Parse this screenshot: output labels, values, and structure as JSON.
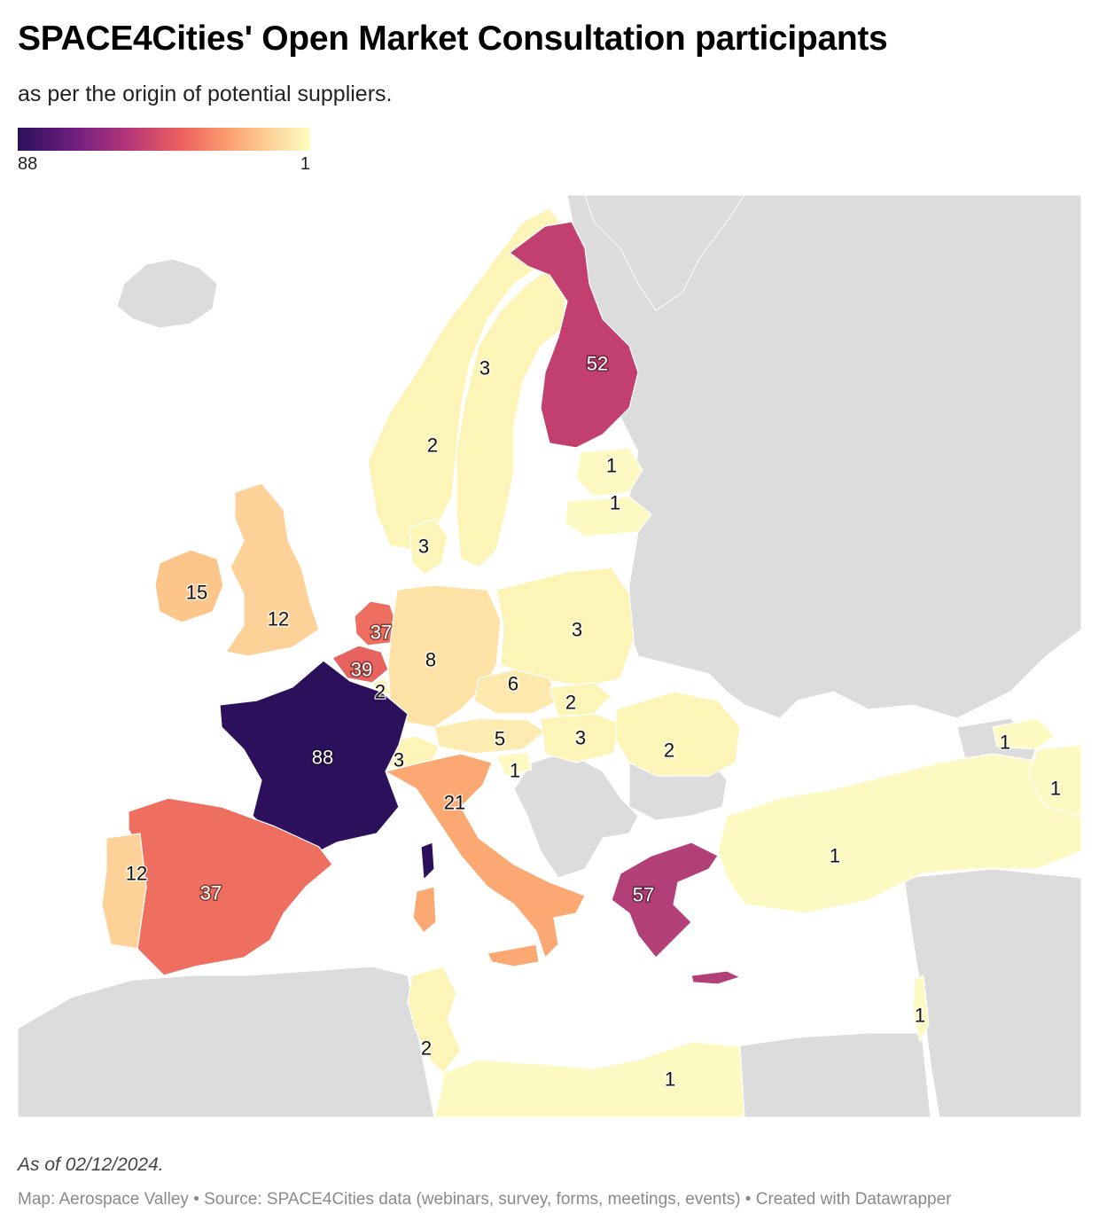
{
  "title": "SPACE4Cities' Open Market Consultation participants",
  "subtitle": "as per the origin of potential suppliers.",
  "legend": {
    "min_label": "88",
    "max_label": "1",
    "scale": "magma (dark = high)"
  },
  "notes": "As of 02/12/2024.",
  "footer": {
    "map_credit": "Map: Aerospace Valley",
    "source": "Source: SPACE4Cities data (webinars, survey, forms, meetings, events)",
    "created_with": "Created with Datawrapper",
    "full": "Map: Aerospace Valley • Source: SPACE4Cities data (webinars, survey, forms, meetings, events) • Created with Datawrapper"
  },
  "colors": {
    "no_data": "#dcdcdc",
    "sea": "#ffffff",
    "border": "#ffffff"
  },
  "regions": [
    {
      "id": "norway",
      "value": 2,
      "color": "#fdf4b8",
      "label": "2"
    },
    {
      "id": "sweden",
      "value": 3,
      "color": "#fdf4b8",
      "label": "3"
    },
    {
      "id": "finland",
      "value": 52,
      "color": "#c2406f",
      "label": "52"
    },
    {
      "id": "estonia",
      "value": 1,
      "color": "#fdf9c3",
      "label": "1"
    },
    {
      "id": "latvia",
      "value": 1,
      "color": "#fdf9c3",
      "label": "1"
    },
    {
      "id": "denmark",
      "value": 3,
      "color": "#fdf4b8",
      "label": "3"
    },
    {
      "id": "ireland",
      "value": 15,
      "color": "#fcc589",
      "label": "15"
    },
    {
      "id": "united-kingdom",
      "value": 12,
      "color": "#fdd197",
      "label": "12"
    },
    {
      "id": "netherlands",
      "value": 37,
      "color": "#ee6e60",
      "label": "37"
    },
    {
      "id": "belgium",
      "value": 39,
      "color": "#e8625f",
      "label": "39"
    },
    {
      "id": "luxembourg",
      "value": 2,
      "color": "#fdf4b8",
      "label": "2"
    },
    {
      "id": "germany",
      "value": 8,
      "color": "#fde1a5",
      "label": "8"
    },
    {
      "id": "poland",
      "value": 3,
      "color": "#fdf4b8",
      "label": "3"
    },
    {
      "id": "czechia",
      "value": 6,
      "color": "#fde8ad",
      "label": "6"
    },
    {
      "id": "slovakia",
      "value": 2,
      "color": "#fdf4b8",
      "label": "2"
    },
    {
      "id": "austria",
      "value": 5,
      "color": "#fdecb1",
      "label": "5"
    },
    {
      "id": "hungary",
      "value": 3,
      "color": "#fdf4b8",
      "label": "3"
    },
    {
      "id": "romania",
      "value": 2,
      "color": "#fdf4b8",
      "label": "2"
    },
    {
      "id": "switzerland",
      "value": 3,
      "color": "#fdf4b8",
      "label": "3"
    },
    {
      "id": "slovenia",
      "value": 1,
      "color": "#fdf9c3",
      "label": "1"
    },
    {
      "id": "france",
      "value": 88,
      "color": "#2c105c",
      "label": "88"
    },
    {
      "id": "italy",
      "value": 21,
      "color": "#fba873",
      "label": "21"
    },
    {
      "id": "spain",
      "value": 37,
      "color": "#ee6e60",
      "label": "37"
    },
    {
      "id": "portugal",
      "value": 12,
      "color": "#fdd197",
      "label": "12"
    },
    {
      "id": "greece",
      "value": 57,
      "color": "#b23f78",
      "label": "57"
    },
    {
      "id": "turkey",
      "value": 1,
      "color": "#fdf9c3",
      "label": "1"
    },
    {
      "id": "georgia",
      "value": 1,
      "color": "#fdf9c3",
      "label": "1"
    },
    {
      "id": "azerbaijan",
      "value": 1,
      "color": "#fdf9c3",
      "label": "1"
    },
    {
      "id": "israel",
      "value": 1,
      "color": "#fdf9c3",
      "label": "1"
    },
    {
      "id": "tunisia",
      "value": 2,
      "color": "#fdf4b8",
      "label": "2"
    },
    {
      "id": "libya",
      "value": 1,
      "color": "#fdf9c3",
      "label": "1"
    }
  ]
}
